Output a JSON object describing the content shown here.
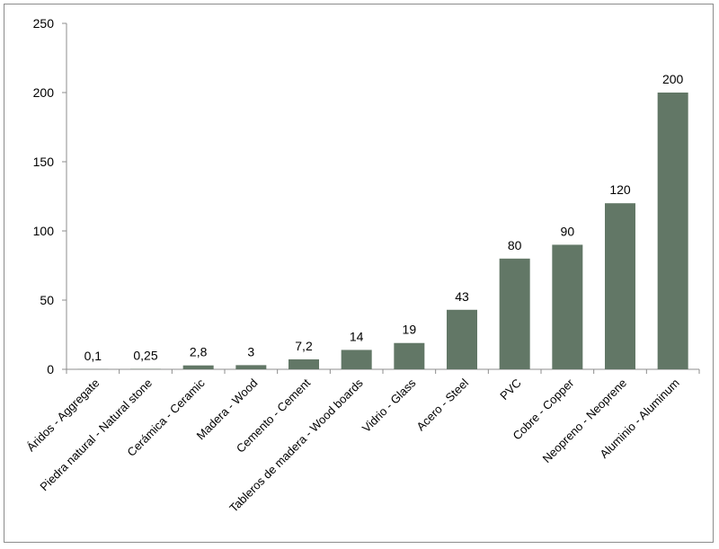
{
  "chart_data": {
    "type": "bar",
    "categories": [
      "Áridos - Aggregate",
      "Piedra natural - Natural stone",
      "Cerámica - Ceramic",
      "Madera - Wood",
      "Cemento - Cement",
      "Tableros de madera - Wood boards",
      "Vidrio - Glass",
      "Acero - Steel",
      "PVC",
      "Cobre - Copper",
      "Neopreno - Neoprene",
      "Aluminio - Aluminum"
    ],
    "values": [
      0.1,
      0.25,
      2.8,
      3,
      7.2,
      14,
      19,
      43,
      80,
      90,
      120,
      200
    ],
    "data_labels": [
      "0,1",
      "0,25",
      "2,8",
      "3",
      "7,2",
      "14",
      "19",
      "43",
      "80",
      "90",
      "120",
      "200"
    ],
    "ylim": [
      0,
      250
    ],
    "yticks": [
      0,
      50,
      100,
      150,
      200,
      250
    ],
    "grid": false,
    "legend": "none",
    "bar_color": "#627766"
  }
}
